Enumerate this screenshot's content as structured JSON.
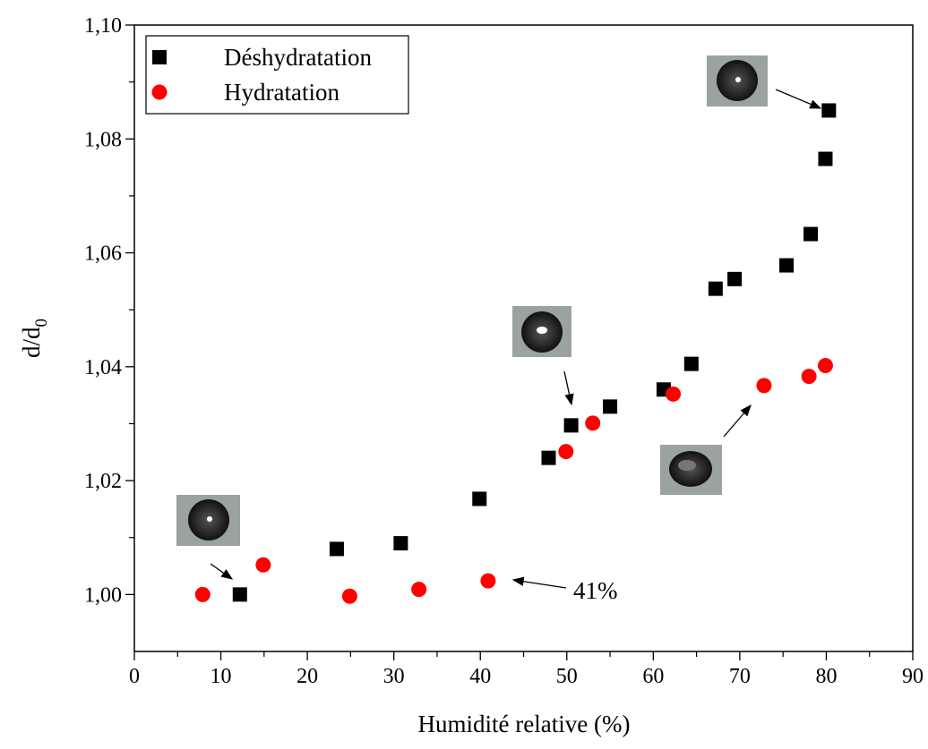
{
  "chart_data": {
    "type": "scatter",
    "x_label": "Humidité relative (%)",
    "y_label": {
      "text": "d/d",
      "subscript": "0"
    },
    "xlim": [
      0,
      90
    ],
    "xticks": [
      0,
      10,
      20,
      30,
      40,
      50,
      60,
      70,
      80,
      90
    ],
    "ylim": [
      0.99,
      1.1
    ],
    "yticks": [
      {
        "value": 1.0,
        "label": "1,00"
      },
      {
        "value": 1.02,
        "label": "1,02"
      },
      {
        "value": 1.04,
        "label": "1,04"
      },
      {
        "value": 1.06,
        "label": "1,06"
      },
      {
        "value": 1.08,
        "label": "1,08"
      },
      {
        "value": 1.1,
        "label": "1,10"
      }
    ],
    "legend_position": "upper left",
    "annotation": "41%",
    "series": [
      {
        "name": "Déshydratation",
        "color": "#000000",
        "marker": "square",
        "x": [
          12.2,
          23.4,
          30.8,
          39.9,
          47.9,
          50.5,
          55.0,
          61.2,
          64.4,
          67.2,
          69.4,
          75.4,
          78.2,
          79.9,
          80.3
        ],
        "values": [
          1.0,
          1.008,
          1.009,
          1.0168,
          1.024,
          1.0297,
          1.033,
          1.036,
          1.0405,
          1.0537,
          1.0554,
          1.0578,
          1.0633,
          1.0765,
          1.085
        ]
      },
      {
        "name": "Hydratation",
        "color": "#ff0000",
        "marker": "circle",
        "x": [
          7.9,
          14.9,
          24.9,
          32.9,
          40.9,
          49.9,
          53.0,
          62.3,
          72.8,
          78.0,
          79.9
        ],
        "values": [
          1.0,
          1.0052,
          0.9997,
          1.0009,
          1.0024,
          1.0251,
          1.0301,
          1.0352,
          1.0367,
          1.0383,
          1.0402
        ]
      }
    ]
  }
}
